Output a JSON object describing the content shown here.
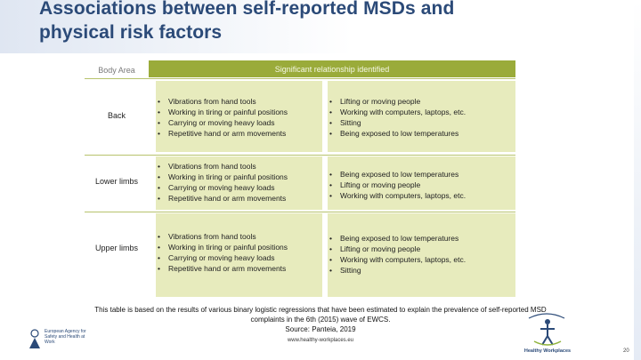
{
  "title": {
    "line1": "Associations between self-reported MSDs and",
    "line2": "physical risk factors"
  },
  "table": {
    "header_area": "Body Area",
    "header_relationship": "Significant relationship identified",
    "rows": [
      {
        "area": "Back",
        "col1": [
          "Vibrations from hand tools",
          "Working in tiring or painful positions",
          "Carrying or moving heavy loads",
          "Repetitive hand or arm movements"
        ],
        "col2": [
          "Lifting or moving people",
          "Working with computers, laptops, etc.",
          "Sitting",
          "Being exposed to low temperatures"
        ]
      },
      {
        "area": "Lower limbs",
        "col1": [
          "Vibrations from hand tools",
          "Working in tiring or painful positions",
          "Carrying or moving heavy loads",
          "Repetitive hand or arm movements"
        ],
        "col2": [
          "Being exposed to low temperatures",
          "Lifting or moving people",
          "Working with computers, laptops, etc."
        ]
      },
      {
        "area": "Upper limbs",
        "col1": [
          "Vibrations from hand tools",
          "Working in tiring or painful positions",
          "Carrying or moving heavy loads",
          "Repetitive hand or arm movements"
        ],
        "col2": [
          "Being exposed to low temperatures",
          "Lifting or moving people",
          "Working with computers, laptops, etc.",
          "Sitting"
        ]
      }
    ]
  },
  "caption": {
    "line1": "This table is based on the results of various binary logistic regressions that have been estimated to explain the prevalence of self-reported MSD",
    "line2": "complaints in the 6th (2015) wave of EWCS.",
    "line3": "Source: Panteia, 2019"
  },
  "footer": {
    "url": "www.healthy-workplaces.eu",
    "left_logo_text": "European Agency for Safety and Health at Work",
    "right_logo_text": "Healthy Workplaces",
    "page_number": "20"
  },
  "colors": {
    "title": "#2b4a78",
    "header_green": "#9aab3a",
    "cell_green": "#e7ebbd"
  }
}
